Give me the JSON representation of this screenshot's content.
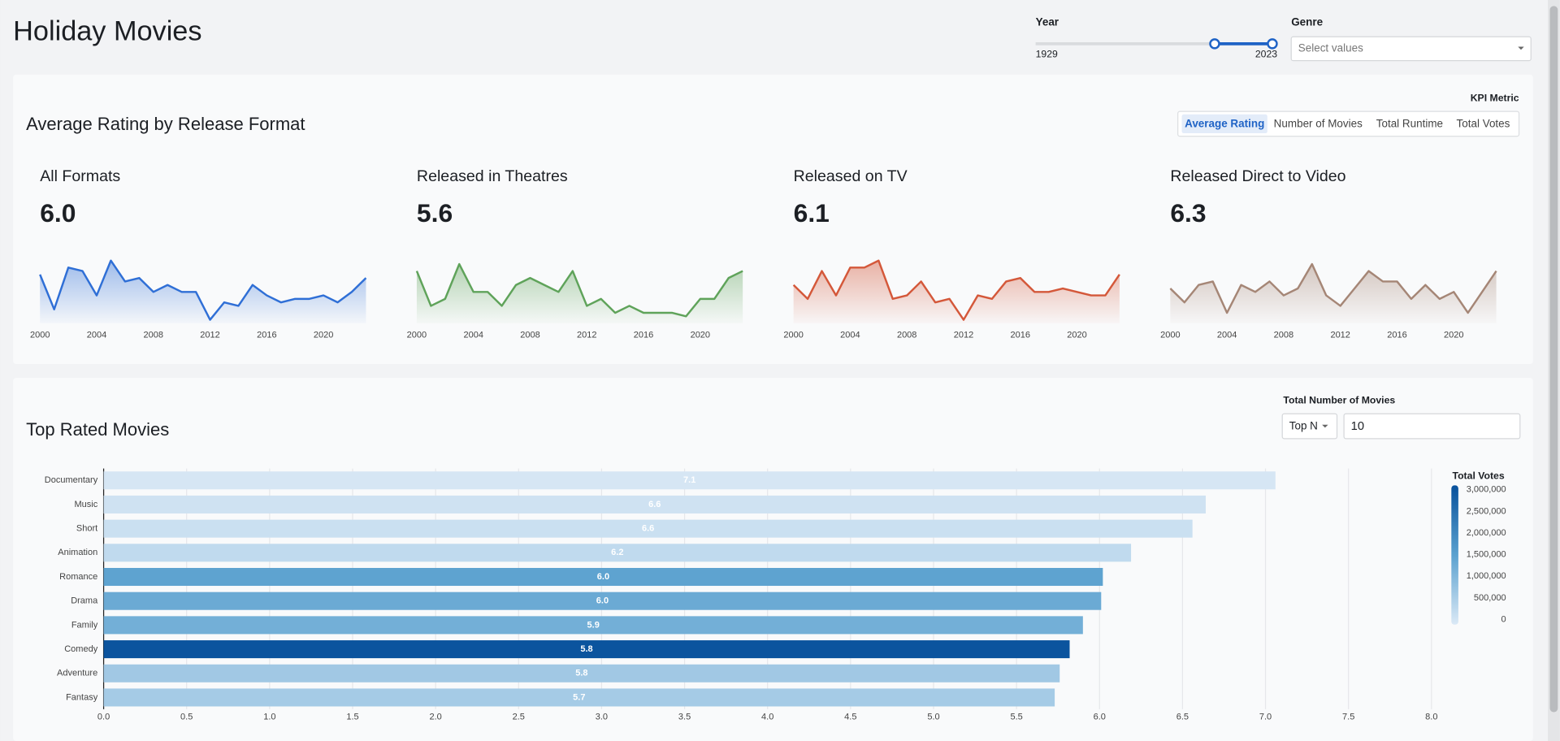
{
  "header": {
    "title": "Holiday Movies"
  },
  "filters": {
    "year": {
      "label": "Year",
      "min": "1929",
      "max": "2023"
    },
    "genre": {
      "label": "Genre",
      "placeholder": "Select values"
    }
  },
  "kpi_section": {
    "title": "Average Rating by Release Format",
    "metric_label": "KPI Metric",
    "options": [
      "Average Rating",
      "Number of Movies",
      "Total Runtime",
      "Total Votes"
    ]
  },
  "top_section": {
    "title": "Top Rated Movies",
    "control_label": "Total Number of Movies",
    "mode": "Top N",
    "n": "10"
  },
  "chart_data": [
    {
      "type": "sparkline",
      "title": "All Formats",
      "headline": "6.0",
      "color": "#2f6fd6",
      "x": [
        2000,
        2001,
        2002,
        2003,
        2004,
        2005,
        2006,
        2007,
        2008,
        2009,
        2010,
        2011,
        2012,
        2013,
        2014,
        2015,
        2016,
        2017,
        2018,
        2019,
        2020,
        2021,
        2022,
        2023
      ],
      "values": [
        6.4,
        5.4,
        6.6,
        6.5,
        5.8,
        6.8,
        6.2,
        6.3,
        5.9,
        6.1,
        5.9,
        5.9,
        5.1,
        5.6,
        5.5,
        6.1,
        5.8,
        5.6,
        5.7,
        5.7,
        5.8,
        5.6,
        5.9,
        6.3
      ],
      "xlim": [
        2000,
        2023
      ],
      "ylim": [
        5,
        7
      ],
      "xticks": [
        2000,
        2004,
        2008,
        2012,
        2016,
        2020
      ]
    },
    {
      "type": "sparkline",
      "title": "Released in Theatres",
      "headline": "5.6",
      "color": "#5fa35a",
      "x": [
        2000,
        2001,
        2002,
        2003,
        2004,
        2005,
        2006,
        2007,
        2008,
        2009,
        2010,
        2011,
        2012,
        2013,
        2014,
        2015,
        2016,
        2017,
        2018,
        2019,
        2020,
        2021,
        2022,
        2023
      ],
      "values": [
        6.5,
        5.5,
        5.7,
        6.7,
        5.9,
        5.9,
        5.5,
        6.1,
        6.3,
        6.1,
        5.9,
        6.5,
        5.5,
        5.7,
        5.3,
        5.5,
        5.3,
        5.3,
        5.3,
        5.2,
        5.7,
        5.7,
        6.3,
        6.5
      ],
      "xlim": [
        2000,
        2023
      ],
      "ylim": [
        5,
        7
      ],
      "xticks": [
        2000,
        2004,
        2008,
        2012,
        2016,
        2020
      ]
    },
    {
      "type": "sparkline",
      "title": "Released on TV",
      "headline": "6.1",
      "color": "#d4583a",
      "x": [
        2000,
        2001,
        2002,
        2003,
        2004,
        2005,
        2006,
        2007,
        2008,
        2009,
        2010,
        2011,
        2012,
        2013,
        2014,
        2015,
        2016,
        2017,
        2018,
        2019,
        2020,
        2021,
        2022,
        2023
      ],
      "values": [
        6.1,
        5.7,
        6.5,
        5.8,
        6.6,
        6.6,
        6.8,
        5.7,
        5.8,
        6.2,
        5.6,
        5.7,
        5.1,
        5.8,
        5.7,
        6.2,
        6.3,
        5.9,
        5.9,
        6.0,
        5.9,
        5.8,
        5.8,
        6.4
      ],
      "xlim": [
        2000,
        2023
      ],
      "ylim": [
        5,
        7
      ],
      "xticks": [
        2000,
        2004,
        2008,
        2012,
        2016,
        2020
      ]
    },
    {
      "type": "sparkline",
      "title": "Released Direct to Video",
      "headline": "6.3",
      "color": "#a58676",
      "x": [
        2000,
        2001,
        2002,
        2003,
        2004,
        2005,
        2006,
        2007,
        2008,
        2009,
        2010,
        2011,
        2012,
        2013,
        2014,
        2015,
        2016,
        2017,
        2018,
        2019,
        2020,
        2021,
        2022,
        2023
      ],
      "values": [
        6.0,
        5.6,
        6.1,
        6.2,
        5.3,
        6.1,
        5.9,
        6.2,
        5.8,
        6.0,
        6.7,
        5.8,
        5.5,
        6.0,
        6.5,
        6.2,
        6.2,
        5.7,
        6.1,
        5.7,
        5.9,
        5.3,
        5.9,
        6.5
      ],
      "xlim": [
        2000,
        2023
      ],
      "ylim": [
        5,
        7
      ],
      "xticks": [
        2000,
        2004,
        2008,
        2012,
        2016,
        2020
      ]
    },
    {
      "type": "hbar",
      "categories": [
        "Documentary",
        "Music",
        "Short",
        "Animation",
        "Romance",
        "Drama",
        "Family",
        "Comedy",
        "Adventure",
        "Fantasy"
      ],
      "values": [
        7.06,
        6.64,
        6.56,
        6.19,
        6.02,
        6.01,
        5.9,
        5.82,
        5.76,
        5.73
      ],
      "value_labels": [
        "7.1",
        "6.6",
        "6.6",
        "6.2",
        "6.0",
        "6.0",
        "5.9",
        "5.8",
        "5.8",
        "5.7"
      ],
      "color_values": [
        60000,
        150000,
        200000,
        320000,
        1500000,
        1350000,
        1250000,
        3050000,
        700000,
        650000
      ],
      "color_title": "Total Votes",
      "colormap": [
        "#dbe9f6",
        "#5aa1cf",
        "#08519c"
      ],
      "clim": [
        0,
        3100000
      ],
      "cticks": [
        0,
        {
          "value": 500000,
          "label": "500,000"
        },
        {
          "value": 1000000,
          "label": "1,000,000"
        },
        {
          "value": 1500000,
          "label": "1,500,000"
        },
        {
          "value": 2000000,
          "label": "2,000,000"
        },
        {
          "value": 2500000,
          "label": "2,500,000"
        },
        {
          "value": 3000000,
          "label": "3,000,000"
        }
      ],
      "xlim": [
        0,
        8
      ],
      "xticks": [
        {
          "value": 0,
          "label": "0.0"
        },
        0.5,
        {
          "value": 1,
          "label": "1.0"
        },
        1.5,
        {
          "value": 2,
          "label": "2.0"
        },
        2.5,
        {
          "value": 3,
          "label": "3.0"
        },
        3.5,
        {
          "value": 4,
          "label": "4.0"
        },
        4.5,
        {
          "value": 5,
          "label": "5.0"
        },
        5.5,
        {
          "value": 6,
          "label": "6.0"
        },
        6.5,
        {
          "value": 7,
          "label": "7.0"
        },
        7.5,
        {
          "value": 8,
          "label": "8.0"
        }
      ],
      "grid": true
    }
  ]
}
